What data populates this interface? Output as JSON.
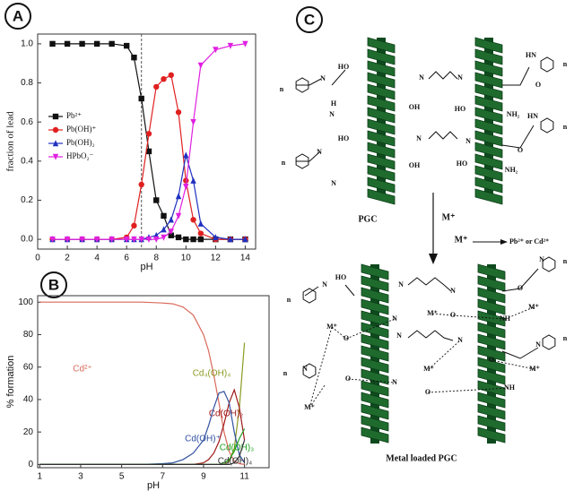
{
  "panels": [
    "A",
    "B",
    "C"
  ],
  "chart_data": [
    {
      "type": "line",
      "xlabel": "pH",
      "ylabel": "fraction of lead",
      "xlim": [
        0,
        14.7
      ],
      "ylim": [
        -0.05,
        1.05
      ],
      "xticks": [
        0,
        2,
        4,
        6,
        8,
        10,
        12,
        14
      ],
      "yticks": [
        {
          "value": 0,
          "label": "0.0"
        },
        {
          "value": 0.2,
          "label": "0.2"
        },
        {
          "value": 0.4,
          "label": "0.4"
        },
        {
          "value": 0.6,
          "label": "0.6"
        },
        {
          "value": 0.8,
          "label": "0.8"
        },
        {
          "value": 1,
          "label": "1.0"
        }
      ],
      "vline": 7,
      "legend": "center left",
      "x": [
        1,
        2,
        3,
        4,
        5,
        6,
        6.5,
        7,
        7.5,
        8,
        8.5,
        9,
        9.5,
        10,
        10.5,
        11,
        12,
        13,
        14
      ],
      "series": [
        {
          "name": "Pb²⁺",
          "color": "#111111",
          "marker": "square",
          "values": [
            1,
            1,
            1,
            1,
            1,
            0.99,
            0.93,
            0.72,
            0.45,
            0.2,
            0.12,
            0.02,
            0.01,
            0,
            0,
            0,
            0,
            0,
            0
          ]
        },
        {
          "name": "Pb(OH)⁺",
          "color": "#e02020",
          "marker": "circle",
          "values": [
            0,
            0,
            0,
            0,
            0,
            0.01,
            0.07,
            0.28,
            0.54,
            0.78,
            0.82,
            0.84,
            0.65,
            0.3,
            0.1,
            0.03,
            0,
            0,
            0
          ]
        },
        {
          "name": "Pb(OH)₂",
          "color": "#2030c0",
          "marker": "triangle",
          "values": [
            0,
            0,
            0,
            0,
            0,
            0,
            0,
            0,
            0.01,
            0.02,
            0.05,
            0.1,
            0.22,
            0.43,
            0.3,
            0.08,
            0.01,
            0,
            0
          ]
        },
        {
          "name": "HPbO₂⁻",
          "color": "#e020e0",
          "marker": "triangle-down",
          "values": [
            0,
            0,
            0,
            0,
            0,
            0,
            0,
            0,
            0,
            0,
            0.01,
            0.04,
            0.12,
            0.27,
            0.6,
            0.89,
            0.97,
            0.99,
            1
          ]
        }
      ]
    },
    {
      "type": "line",
      "xlabel": "pH",
      "ylabel": "% formation",
      "xlim": [
        0.9,
        12.2
      ],
      "ylim": [
        -2,
        104
      ],
      "xticks": [
        1,
        3,
        5,
        7,
        9,
        11
      ],
      "yticks": [
        0,
        20,
        40,
        60,
        80,
        100
      ],
      "x": [
        1,
        3,
        5,
        6,
        7,
        7.5,
        8,
        8.5,
        9,
        9.25,
        9.5,
        9.75,
        10,
        10.25,
        10.5,
        10.75,
        11
      ],
      "series": [
        {
          "name": "Cd²⁺",
          "color": "#d86a5a",
          "values": [
            100,
            100,
            100,
            100,
            99.5,
            99,
            97,
            92,
            80,
            70,
            55,
            38,
            20,
            8,
            2,
            0.5,
            0
          ]
        },
        {
          "name": "Cd₄(OH)₄",
          "color": "#8a9a20",
          "values": [
            0,
            0,
            0,
            0,
            0,
            0,
            0,
            0,
            0,
            0,
            0,
            0,
            0,
            2,
            10,
            35,
            75
          ]
        },
        {
          "name": "Cd(OH)₂",
          "color": "#a01818",
          "values": [
            0,
            0,
            0,
            0,
            0,
            0,
            0,
            0,
            1,
            3,
            7,
            14,
            25,
            38,
            46,
            35,
            15
          ]
        },
        {
          "name": "Cd(OH)⁺",
          "color": "#3050a0",
          "values": [
            0,
            0,
            0,
            0,
            0.5,
            1,
            3,
            7,
            15,
            24,
            35,
            44,
            45,
            38,
            20,
            6,
            1
          ]
        },
        {
          "name": "Cd(OH)₃",
          "color": "#20a020",
          "values": [
            0,
            0,
            0,
            0,
            0,
            0,
            0,
            0,
            0,
            0,
            0,
            0,
            1,
            3,
            8,
            16,
            22
          ]
        },
        {
          "name": "Cd(OH)₄",
          "color": "#303030",
          "values": [
            0,
            0,
            0,
            0,
            0,
            0,
            0,
            0,
            0,
            0,
            0,
            0,
            0,
            0,
            1,
            5,
            15
          ]
        }
      ]
    }
  ],
  "diagram": {
    "pgc_label": "PGC",
    "arrow_label": "M⁺",
    "reactant": "M⁺",
    "product": "Pb²⁺ or Cd²⁺",
    "caption": "Metal loaded PGC",
    "atoms": [
      "n",
      "N",
      "HO",
      "N",
      "N",
      "O",
      "HN",
      "n",
      "H",
      "N",
      "OH",
      "HO",
      "NH₂",
      "HO",
      "N",
      "N",
      "O",
      "HN",
      "n",
      "n",
      "N",
      "N",
      "OH",
      "HO",
      "NH₂",
      "n",
      "N",
      "HO",
      "N",
      "N",
      "O",
      "N",
      "n",
      "M⁺",
      "O",
      "M⁺",
      "O",
      "N",
      "NH",
      "M⁺",
      "N",
      "N",
      "O",
      "M⁺",
      "N",
      "n",
      "n",
      "N",
      "O",
      "M⁺",
      "O",
      "N",
      "NH",
      "M⁺"
    ]
  }
}
